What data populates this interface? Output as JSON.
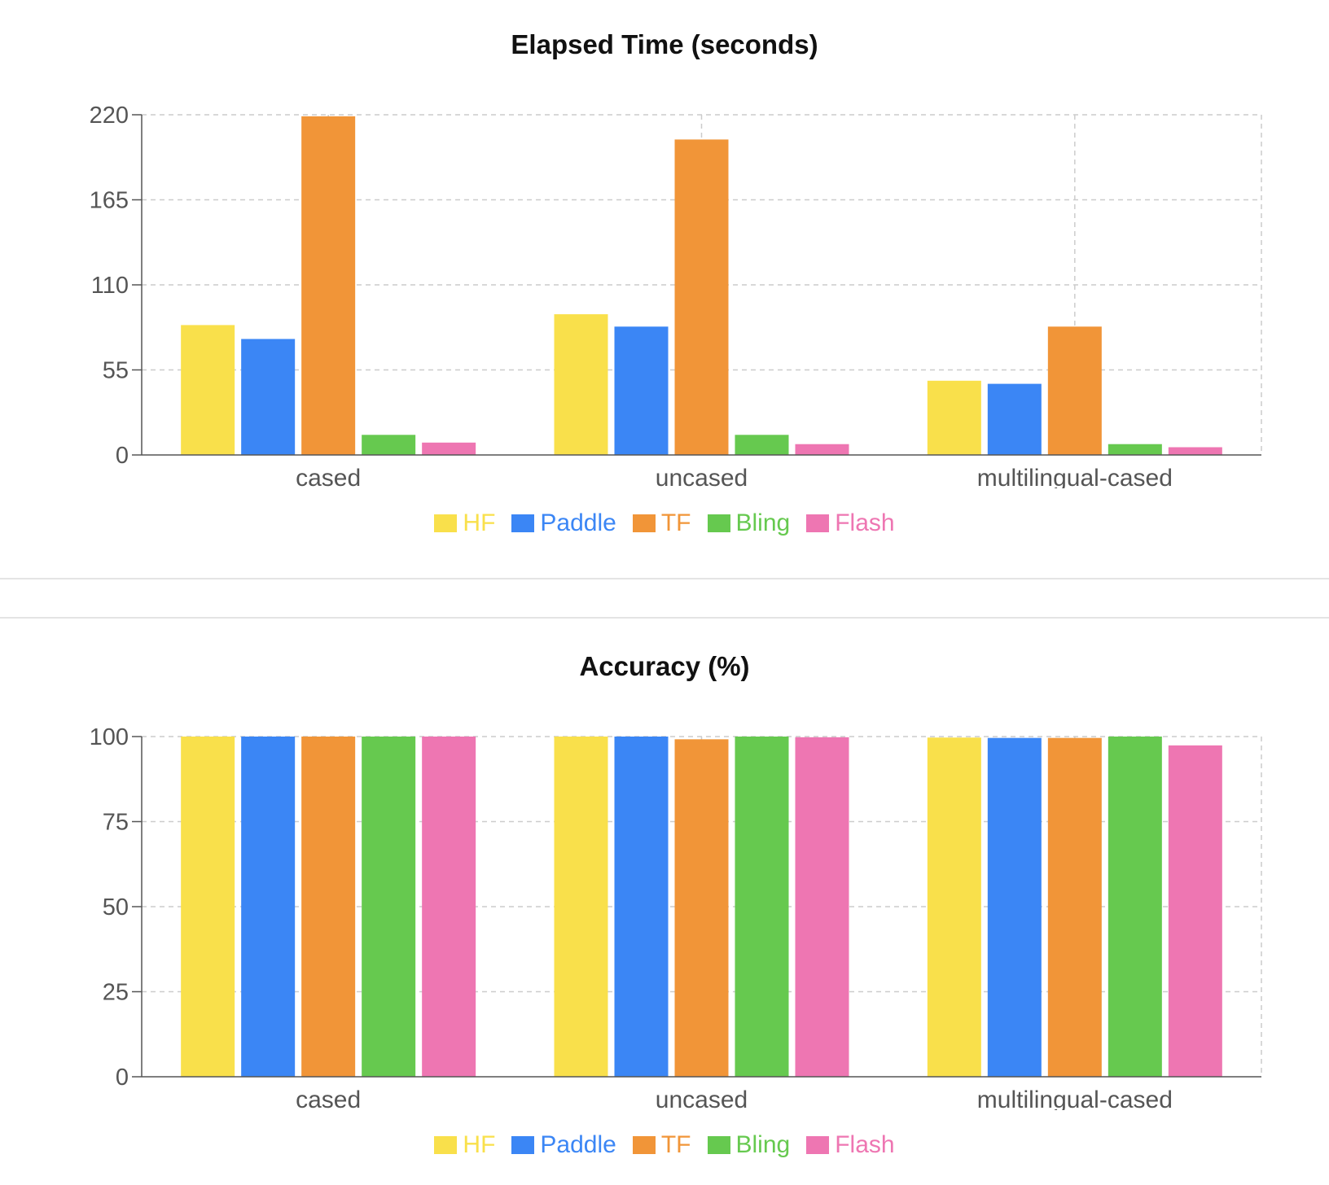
{
  "chart_data": [
    {
      "type": "bar",
      "title": "Elapsed Time (seconds)",
      "categories": [
        "cased",
        "uncased",
        "multilingual-cased"
      ],
      "ylim": [
        0,
        220
      ],
      "yticks": [
        "220",
        "165",
        "110",
        "55",
        "0"
      ],
      "grid": true,
      "legend_position": "bottom",
      "series": [
        {
          "name": "HF",
          "color": "#f9e04b",
          "values": [
            84,
            91,
            48
          ]
        },
        {
          "name": "Paddle",
          "color": "#3b86f5",
          "values": [
            75,
            83,
            46
          ]
        },
        {
          "name": "TF",
          "color": "#f19538",
          "values": [
            219,
            204,
            83
          ]
        },
        {
          "name": "Bling",
          "color": "#66c94f",
          "values": [
            13,
            13,
            7
          ]
        },
        {
          "name": "Flash",
          "color": "#ee76b2",
          "values": [
            8,
            7,
            5
          ]
        }
      ]
    },
    {
      "type": "bar",
      "title": "Accuracy (%)",
      "categories": [
        "cased",
        "uncased",
        "multilingual-cased"
      ],
      "ylim": [
        0,
        100
      ],
      "yticks": [
        "100",
        "75",
        "50",
        "25",
        "0"
      ],
      "grid": true,
      "legend_position": "bottom",
      "series": [
        {
          "name": "HF",
          "color": "#f9e04b",
          "values": [
            100,
            100,
            99.7
          ]
        },
        {
          "name": "Paddle",
          "color": "#3b86f5",
          "values": [
            100,
            100,
            99.6
          ]
        },
        {
          "name": "TF",
          "color": "#f19538",
          "values": [
            100,
            99.2,
            99.6
          ]
        },
        {
          "name": "Bling",
          "color": "#66c94f",
          "values": [
            100,
            100,
            100
          ]
        },
        {
          "name": "Flash",
          "color": "#ee76b2",
          "values": [
            100,
            99.8,
            97.4
          ]
        }
      ]
    }
  ]
}
